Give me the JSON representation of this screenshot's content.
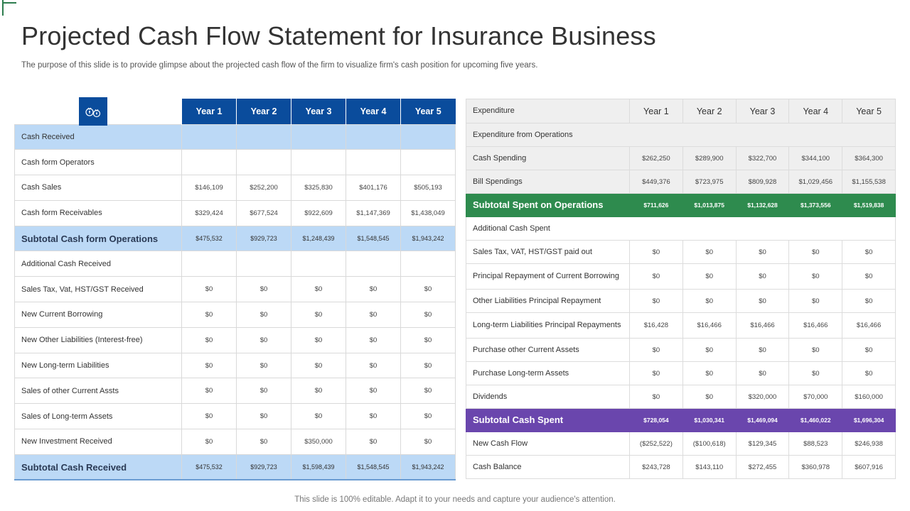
{
  "title": "Projected Cash Flow Statement for Insurance Business",
  "subtitle": "The purpose of this slide is to provide glimpse about the projected cash flow of the firm to visualize firm's cash position for upcoming five years.",
  "footer": "This slide is 100% editable. Adapt it to your needs and capture your audience's attention.",
  "colors": {
    "navy": "#0a4c9c",
    "light_blue": "#bcd9f6",
    "green": "#2e8b4e",
    "purple": "#6a46ad",
    "grey": "#efefef"
  },
  "left_table": {
    "years": [
      "Year 1",
      "Year 2",
      "Year 3",
      "Year 4",
      "Year 5"
    ],
    "logo_icon": "money-bags-icon",
    "rows": [
      {
        "label": "Cash Received",
        "type": "sec",
        "values": [
          "",
          "",
          "",
          "",
          ""
        ]
      },
      {
        "label": "Cash form Operators",
        "type": "row",
        "values": [
          "",
          "",
          "",
          "",
          ""
        ]
      },
      {
        "label": "Cash Sales",
        "type": "row",
        "values": [
          "$146,109",
          "$252,200",
          "$325,830",
          "$401,176",
          "$505,193"
        ]
      },
      {
        "label": "Cash form Receivables",
        "type": "row",
        "values": [
          "$329,424",
          "$677,524",
          "$922,609",
          "$1,147,369",
          "$1,438,049"
        ]
      },
      {
        "label": "Subtotal Cash form Operations",
        "type": "sub",
        "values": [
          "$475,532",
          "$929,723",
          "$1,248,439",
          "$1,548,545",
          "$1,943,242"
        ]
      },
      {
        "label": "Additional Cash Received",
        "type": "row",
        "values": [
          "",
          "",
          "",
          "",
          ""
        ]
      },
      {
        "label": "Sales Tax, Vat, HST/GST Received",
        "type": "row",
        "values": [
          "$0",
          "$0",
          "$0",
          "$0",
          "$0"
        ]
      },
      {
        "label": "New Current Borrowing",
        "type": "row",
        "values": [
          "$0",
          "$0",
          "$0",
          "$0",
          "$0"
        ]
      },
      {
        "label": "New Other Liabilities (Interest-free)",
        "type": "row",
        "values": [
          "$0",
          "$0",
          "$0",
          "$0",
          "$0"
        ]
      },
      {
        "label": "New Long-term Liabilities",
        "type": "row",
        "values": [
          "$0",
          "$0",
          "$0",
          "$0",
          "$0"
        ]
      },
      {
        "label": "Sales of other Current Assts",
        "type": "row",
        "values": [
          "$0",
          "$0",
          "$0",
          "$0",
          "$0"
        ]
      },
      {
        "label": "Sales of Long-term Assets",
        "type": "row",
        "values": [
          "$0",
          "$0",
          "$0",
          "$0",
          "$0"
        ]
      },
      {
        "label": "New Investment Received",
        "type": "row",
        "values": [
          "$0",
          "$0",
          "$350,000",
          "$0",
          "$0"
        ]
      },
      {
        "label": "Subtotal Cash Received",
        "type": "sub last",
        "values": [
          "$475,532",
          "$929,723",
          "$1,598,439",
          "$1,548,545",
          "$1,943,242"
        ]
      }
    ]
  },
  "right_table": {
    "header_label": "Expenditure",
    "years": [
      "Year 1",
      "Year 2",
      "Year 3",
      "Year 4",
      "Year 5"
    ],
    "rows": [
      {
        "label": "Expenditure from Operations",
        "type": "r g",
        "values": null
      },
      {
        "label": "Cash Spending",
        "type": "r g",
        "values": [
          "$262,250",
          "$289,900",
          "$322,700",
          "$344,100",
          "$364,300"
        ]
      },
      {
        "label": "Bill Spendings",
        "type": "r g",
        "values": [
          "$449,376",
          "$723,975",
          "$809,928",
          "$1,029,456",
          "$1,155,538"
        ]
      },
      {
        "label": "Subtotal Spent on Operations",
        "type": "green",
        "values": [
          "$711,626",
          "$1,013,875",
          "$1,132,628",
          "$1,373,556",
          "$1,519,838"
        ]
      },
      {
        "label": "Additional Cash Spent",
        "type": "r",
        "values": null
      },
      {
        "label": "Sales Tax, VAT, HST/GST paid out",
        "type": "r",
        "values": [
          "$0",
          "$0",
          "$0",
          "$0",
          "$0"
        ]
      },
      {
        "label": "Principal Repayment of Current Borrowing",
        "type": "r tall",
        "values": [
          "$0",
          "$0",
          "$0",
          "$0",
          "$0"
        ]
      },
      {
        "label": "Other Liabilities Principal Repayment",
        "type": "r",
        "values": [
          "$0",
          "$0",
          "$0",
          "$0",
          "$0"
        ]
      },
      {
        "label": "Long-term Liabilities Principal Repayments",
        "type": "r tall",
        "values": [
          "$16,428",
          "$16,466",
          "$16,466",
          "$16,466",
          "$16,466"
        ]
      },
      {
        "label": "Purchase other Current Assets",
        "type": "r",
        "values": [
          "$0",
          "$0",
          "$0",
          "$0",
          "$0"
        ]
      },
      {
        "label": "Purchase Long-term Assets",
        "type": "r",
        "values": [
          "$0",
          "$0",
          "$0",
          "$0",
          "$0"
        ]
      },
      {
        "label": "Dividends",
        "type": "r",
        "values": [
          "$0",
          "$0",
          "$320,000",
          "$70,000",
          "$160,000"
        ]
      },
      {
        "label": "Subtotal Cash Spent",
        "type": "purple",
        "values": [
          "$728,054",
          "$1,030,341",
          "$1,469,094",
          "$1,460,022",
          "$1,696,304"
        ]
      },
      {
        "label": "New Cash Flow",
        "type": "r",
        "values": [
          "($252,522)",
          "($100,618)",
          "$129,345",
          "$88,523",
          "$246,938"
        ]
      },
      {
        "label": "Cash Balance",
        "type": "r",
        "values": [
          "$243,728",
          "$143,110",
          "$272,455",
          "$360,978",
          "$607,916"
        ]
      }
    ]
  }
}
